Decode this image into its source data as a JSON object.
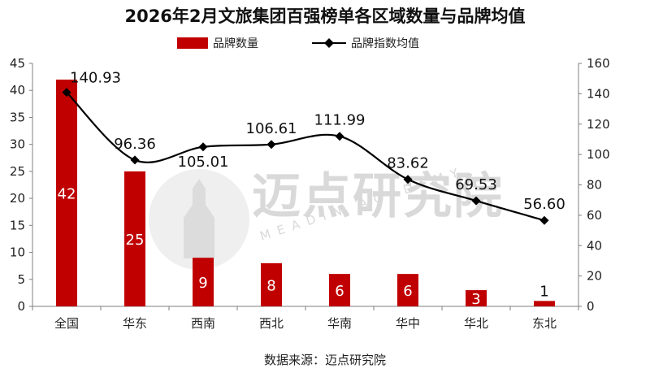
{
  "chart_data": {
    "type": "bar",
    "title": "2026年2月文旅集团百强榜单各区域数量与品牌均值",
    "categories": [
      "全国",
      "华东",
      "西南",
      "西北",
      "华南",
      "华中",
      "华北",
      "东北"
    ],
    "series": [
      {
        "name": "品牌数量",
        "type": "bar",
        "axis": "left",
        "color": "#c00000",
        "values": [
          42,
          25,
          9,
          8,
          6,
          6,
          3,
          1
        ],
        "labels": [
          "42",
          "25",
          "9",
          "8",
          "6",
          "6",
          "3",
          "1"
        ]
      },
      {
        "name": "品牌指数均值",
        "type": "line",
        "axis": "right",
        "color": "#000000",
        "values": [
          140.93,
          96.36,
          105.01,
          106.61,
          111.99,
          83.62,
          69.53,
          56.6
        ],
        "labels": [
          "140.93",
          "96.36",
          "105.01",
          "106.61",
          "111.99",
          "83.62",
          "69.53",
          "56.60"
        ]
      }
    ],
    "y_left": {
      "min": 0,
      "max": 45,
      "ticks": [
        "0",
        "5",
        "10",
        "15",
        "20",
        "25",
        "30",
        "35",
        "40",
        "45"
      ]
    },
    "y_right": {
      "min": 0,
      "max": 160,
      "ticks": [
        "0",
        "20",
        "40",
        "60",
        "80",
        "100",
        "120",
        "140",
        "160"
      ]
    },
    "legend_position": "top-center",
    "source": "数据来源：迈点研究院"
  },
  "watermark": {
    "cn": "迈点研究院",
    "en": "MEADIN ACADEMY"
  }
}
